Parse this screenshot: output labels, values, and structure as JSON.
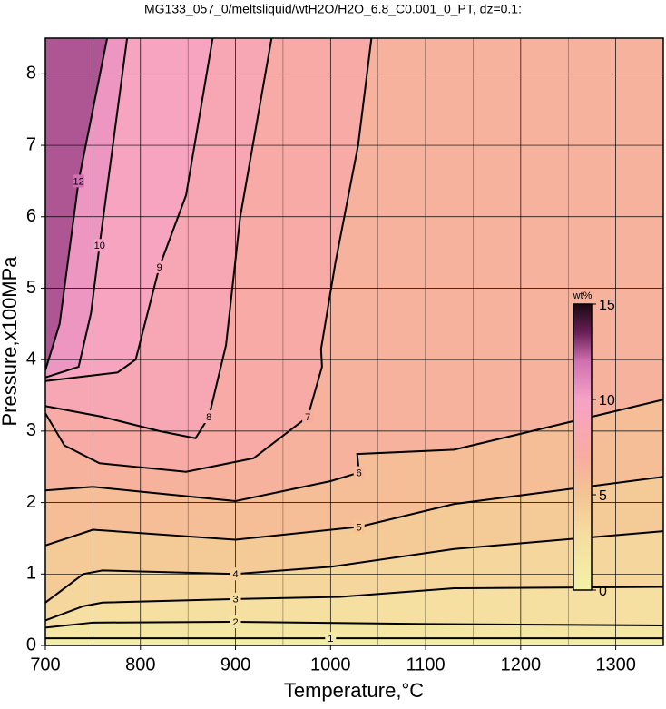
{
  "chart_data": {
    "type": "contour",
    "title": "MG133_057_0/meltsliquid/wtH2O/H2O_6.8_C0.001_0_PT, dz=0.1:",
    "x_label": "Temperature,°C",
    "y_label": "Pressure,x100MPa",
    "xlim": [
      700,
      1350
    ],
    "ylim": [
      0,
      8.5
    ],
    "xticks": [
      700,
      800,
      900,
      1000,
      1100,
      1200,
      1300
    ],
    "yticks": [
      0,
      1,
      2,
      3,
      4,
      5,
      6,
      7,
      8
    ],
    "x_minor_grid": [
      750,
      850,
      950,
      1050,
      1150,
      1250
    ],
    "grid": true,
    "colorbar": {
      "label": "wt%",
      "lim": [
        0,
        15
      ],
      "ticks": [
        0,
        5,
        10,
        15
      ]
    },
    "colorscale": [
      [
        0,
        "#f2f2a8"
      ],
      [
        3,
        "#f5dca0"
      ],
      [
        5,
        "#f4c494"
      ],
      [
        7,
        "#f8aca0"
      ],
      [
        10,
        "#f6a2c6"
      ],
      [
        12,
        "#d070b0"
      ],
      [
        13.5,
        "#6a2058"
      ],
      [
        15,
        "#1a0812"
      ]
    ],
    "series": [
      {
        "level": 1,
        "x": [
          700,
          800,
          1000,
          1350
        ],
        "y": [
          0.1,
          0.1,
          0.1,
          0.1
        ]
      },
      {
        "level": 2,
        "x": [
          700,
          750,
          900,
          1100,
          1350
        ],
        "y": [
          0.25,
          0.32,
          0.33,
          0.3,
          0.28
        ]
      },
      {
        "level": 3,
        "x": [
          700,
          740,
          760,
          900,
          1010,
          1130,
          1350
        ],
        "y": [
          0.35,
          0.55,
          0.6,
          0.65,
          0.68,
          0.8,
          0.82
        ]
      },
      {
        "level": 4,
        "x": [
          700,
          740,
          760,
          900,
          1000,
          1130,
          1350
        ],
        "y": [
          0.6,
          1.0,
          1.05,
          1.0,
          1.1,
          1.35,
          1.6
        ]
      },
      {
        "level": 5,
        "x": [
          700,
          750,
          900,
          1030,
          1130,
          1350
        ],
        "y": [
          1.4,
          1.62,
          1.48,
          1.66,
          1.98,
          2.36
        ]
      },
      {
        "level": 6,
        "x": [
          700,
          750,
          900,
          1000,
          1030,
          1028,
          1130,
          1350
        ],
        "y": [
          2.17,
          2.22,
          2.02,
          2.3,
          2.42,
          2.68,
          2.74,
          3.44
        ]
      },
      {
        "level": 7,
        "x": [
          700,
          720,
          757,
          848,
          919,
          976,
          991,
          990,
          1005,
          1029,
          1043
        ],
        "y": [
          3.25,
          2.8,
          2.55,
          2.43,
          2.62,
          3.2,
          3.9,
          4.15,
          5.35,
          7.0,
          8.5
        ]
      },
      {
        "level": 8,
        "x": [
          700,
          760,
          820,
          858,
          872,
          890,
          905,
          938
        ],
        "y": [
          3.35,
          3.2,
          3.0,
          2.9,
          3.2,
          4.2,
          6.0,
          8.5
        ]
      },
      {
        "level": 9,
        "x": [
          700,
          776,
          795,
          820,
          848,
          876
        ],
        "y": [
          3.7,
          3.82,
          4.0,
          5.3,
          6.3,
          8.5
        ]
      },
      {
        "level": 10,
        "x": [
          700,
          735,
          748,
          757,
          767,
          786
        ],
        "y": [
          3.75,
          3.9,
          4.65,
          5.6,
          6.6,
          8.5
        ]
      },
      {
        "level": 12,
        "x": [
          700,
          715,
          725,
          735,
          750,
          765
        ],
        "y": [
          3.85,
          4.5,
          5.5,
          6.5,
          7.5,
          8.5
        ]
      }
    ]
  }
}
